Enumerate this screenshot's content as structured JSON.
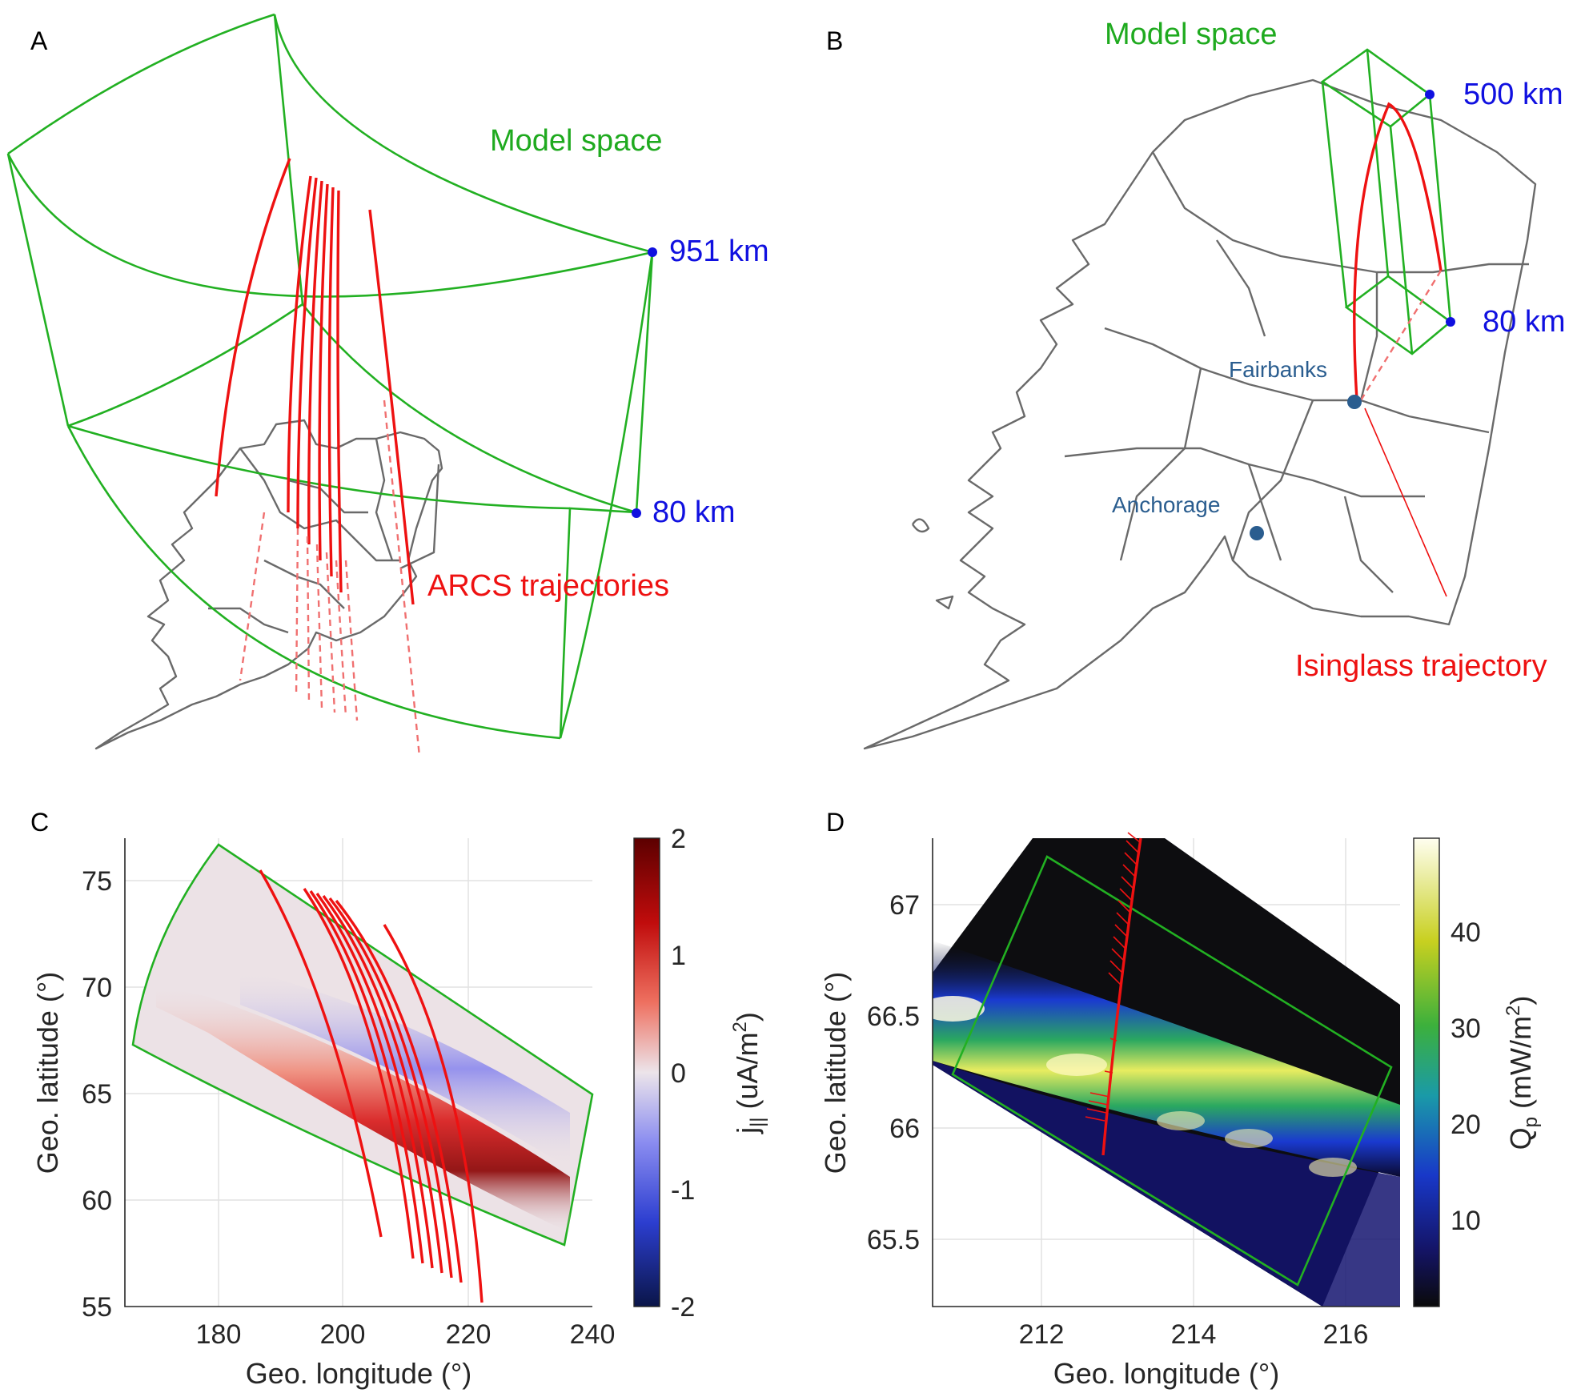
{
  "panels": {
    "A": {
      "letter": "A",
      "model_space_label": "Model space",
      "top_altitude_label": "951 km",
      "bottom_altitude_label": "80 km",
      "trajectory_label": "ARCS trajectories"
    },
    "B": {
      "letter": "B",
      "model_space_label": "Model space",
      "top_altitude_label": "500 km",
      "bottom_altitude_label": "80 km",
      "trajectory_label": "Isinglass trajectory",
      "cities": [
        "Fairbanks",
        "Anchorage"
      ]
    },
    "C": {
      "letter": "C",
      "xlabel": "Geo. longitude (°)",
      "ylabel": "Geo. latitude (°)",
      "colorbar_label_main": "j",
      "colorbar_label_sub": "||",
      "colorbar_label_units": " (uA/m",
      "colorbar_label_exp": "2",
      "colorbar_label_close": ")",
      "x_ticks": [
        "180",
        "200",
        "220",
        "240"
      ],
      "y_ticks": [
        "55",
        "60",
        "65",
        "70",
        "75"
      ],
      "colorbar_ticks": [
        "2",
        "1",
        "0",
        "-1",
        "-2"
      ]
    },
    "D": {
      "letter": "D",
      "xlabel": "Geo. longitude (°)",
      "ylabel": "Geo. latitude (°)",
      "colorbar_label_main": "Q",
      "colorbar_label_sub": "p",
      "colorbar_label_units": " (mW/m",
      "colorbar_label_exp": "2",
      "colorbar_label_close": ")",
      "x_ticks": [
        "212",
        "214",
        "216"
      ],
      "y_ticks": [
        "67",
        "66.5",
        "66",
        "65.5"
      ],
      "colorbar_ticks": [
        "40",
        "30",
        "20",
        "10"
      ]
    }
  },
  "colors": {
    "model_space": "#22b022",
    "trajectory": "#ee1111",
    "altitude_marker": "#1010e0",
    "city": "#2a5d8f",
    "map": "#6a6a6a"
  },
  "chart_data": [
    {
      "panel": "C",
      "type": "heatmap",
      "title": "",
      "xlabel": "Geo. longitude (°)",
      "ylabel": "Geo. latitude (°)",
      "xlim": [
        165,
        240
      ],
      "ylim": [
        55,
        77
      ],
      "clim": [
        -2,
        2
      ],
      "colorbar_label": "j|| (uA/m2)",
      "field": "field-aligned current j||",
      "trajectories": [
        {
          "lon": [
            187,
            193,
            199,
            203,
            206
          ],
          "lat": [
            75.3,
            70,
            65,
            60,
            58.1
          ]
        },
        {
          "lon": [
            194,
            201,
            206,
            209,
            212
          ],
          "lat": [
            74.5,
            70,
            65,
            61,
            57.1
          ]
        },
        {
          "lon": [
            195,
            202,
            207,
            210,
            213
          ],
          "lat": [
            74.3,
            70,
            65,
            61,
            57.0
          ]
        },
        {
          "lon": [
            196,
            203,
            208,
            211,
            214
          ],
          "lat": [
            74.1,
            70,
            65,
            61,
            56.8
          ]
        },
        {
          "lon": [
            197,
            204,
            209,
            212,
            215
          ],
          "lat": [
            73.9,
            70,
            65,
            61,
            56.6
          ]
        },
        {
          "lon": [
            198,
            205,
            210,
            213,
            216
          ],
          "lat": [
            73.7,
            70,
            65,
            61,
            56.4
          ]
        },
        {
          "lon": [
            199,
            206,
            211,
            214,
            217
          ],
          "lat": [
            73.5,
            70,
            65,
            61,
            56.2
          ]
        },
        {
          "lon": [
            203,
            210,
            215,
            219,
            222
          ],
          "lat": [
            72.7,
            68,
            63,
            58,
            55.3
          ]
        }
      ]
    },
    {
      "panel": "D",
      "type": "heatmap",
      "title": "",
      "xlabel": "Geo. longitude (°)",
      "ylabel": "Geo. latitude (°)",
      "xlim": [
        210.6,
        216.7
      ],
      "ylim": [
        65.2,
        67.3
      ],
      "clim": [
        0,
        48
      ],
      "colorbar_label": "Qp (mW/m2)",
      "field": "Poynting flux Qp",
      "trajectory": {
        "lon": [
          212.8,
          212.95,
          213.1,
          213.25
        ],
        "lat": [
          65.85,
          66.4,
          66.9,
          67.3
        ]
      }
    }
  ]
}
